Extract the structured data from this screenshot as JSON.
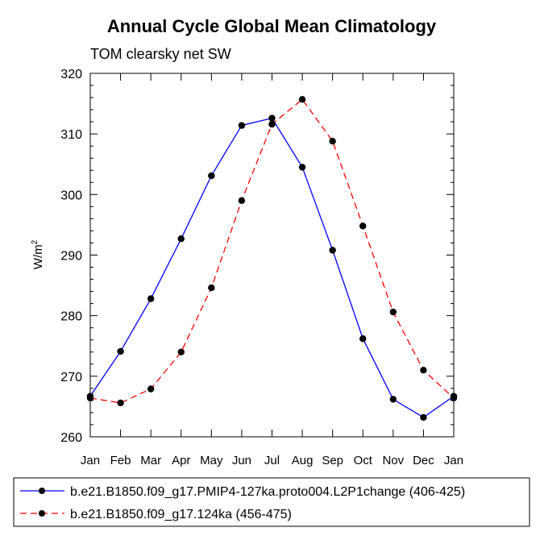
{
  "chart_data": {
    "type": "line",
    "title": "Annual Cycle Global Mean Climatology",
    "subtitle": "TOM clearsky net SW",
    "ylabel_base": "W/m",
    "ylabel_sup": "2",
    "ylim": [
      260,
      320
    ],
    "yticks": [
      260,
      270,
      280,
      290,
      300,
      310,
      320
    ],
    "categories": [
      "Jan",
      "Feb",
      "Mar",
      "Apr",
      "May",
      "Jun",
      "Jul",
      "Aug",
      "Sep",
      "Oct",
      "Nov",
      "Dec",
      "Jan"
    ],
    "series": [
      {
        "name": "b.e21.B1850.f09_g17.PMIP4-127ka.proto004.L2P1change (406-425)",
        "color": "#0000ff",
        "dash": "solid",
        "values": [
          266.7,
          274.1,
          282.8,
          292.7,
          303.1,
          311.4,
          312.6,
          304.5,
          290.8,
          276.2,
          266.2,
          263.2,
          266.7
        ]
      },
      {
        "name": "b.e21.B1850.f09_g17.124ka (456-475)",
        "color": "#ff0000",
        "dash": "dashed",
        "values": [
          266.4,
          265.6,
          267.9,
          274.0,
          284.6,
          299.0,
          311.6,
          315.7,
          308.8,
          294.8,
          280.6,
          271.0,
          266.4
        ]
      }
    ]
  }
}
